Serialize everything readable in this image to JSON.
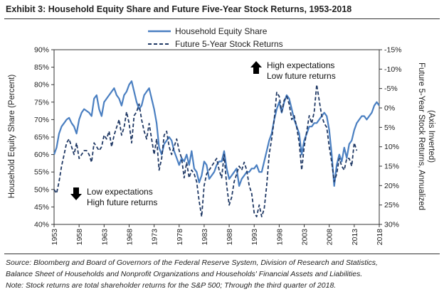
{
  "title": "Exhibit 3: Household Equity Share and Future Five-Year Stock Returns, 1953-2018",
  "source_lines": [
    "Source: Bloomberg and Board of Governors of the Federal Reserve System, Division of Research and Statistics,",
    "Balance Sheet of Households and Nonprofit Organizations and Households' Financial Assets and Liabilities.",
    "Note: Stock returns are total shareholder returns for the S&P 500; Through the third quarter of 2018."
  ],
  "chart_data": {
    "type": "line",
    "xlabel": "",
    "ylabel_left": "Household Equity Share (Percent)",
    "ylabel_right": "Future 5-Year Stock Returns, Annualized",
    "ylabel_right_sub": "(Axis Inverted)",
    "xlim": [
      1953,
      2018
    ],
    "x_ticks": [
      "1953",
      "1958",
      "1963",
      "1968",
      "1973",
      "1978",
      "1983",
      "1988",
      "1993",
      "1998",
      "2003",
      "2008",
      "2013",
      "2018"
    ],
    "ylim_left": [
      40,
      90
    ],
    "y_ticks_left": [
      "90%",
      "85%",
      "80%",
      "75%",
      "70%",
      "65%",
      "60%",
      "55%",
      "50%",
      "45%",
      "40%"
    ],
    "ylim_right": [
      -15,
      30
    ],
    "y_ticks_right": [
      "-15%",
      "-10%",
      "-5%",
      "0%",
      "5%",
      "10%",
      "15%",
      "20%",
      "25%",
      "30%"
    ],
    "legend": [
      "Household Equity Share",
      "Future 5-Year Stock Returns"
    ],
    "colors": {
      "equity": "#4a7fc1",
      "returns": "#1f3864"
    },
    "annotations": [
      {
        "id": "high",
        "direction": "up",
        "lines": [
          "High expectations",
          "Low future returns"
        ]
      },
      {
        "id": "low",
        "direction": "down",
        "lines": [
          "Low expectations",
          "High future returns"
        ]
      }
    ],
    "series": [
      {
        "name": "Household Equity Share",
        "style": "solid",
        "axis": "left",
        "points": [
          [
            1953,
            60
          ],
          [
            1953.5,
            62
          ],
          [
            1954,
            66
          ],
          [
            1954.5,
            68
          ],
          [
            1955,
            69
          ],
          [
            1955.5,
            70
          ],
          [
            1956,
            70.5
          ],
          [
            1956.5,
            69
          ],
          [
            1957,
            68
          ],
          [
            1957.5,
            66
          ],
          [
            1958,
            70
          ],
          [
            1958.5,
            72
          ],
          [
            1959,
            73
          ],
          [
            1959.5,
            72.5
          ],
          [
            1960,
            72
          ],
          [
            1960.5,
            71
          ],
          [
            1961,
            76
          ],
          [
            1961.5,
            77
          ],
          [
            1962,
            73
          ],
          [
            1962.5,
            71
          ],
          [
            1963,
            75
          ],
          [
            1963.5,
            76
          ],
          [
            1964,
            77
          ],
          [
            1964.5,
            78
          ],
          [
            1965,
            79
          ],
          [
            1965.5,
            77
          ],
          [
            1966,
            76
          ],
          [
            1966.5,
            74
          ],
          [
            1967,
            77
          ],
          [
            1967.5,
            78
          ],
          [
            1968,
            80
          ],
          [
            1968.5,
            81
          ],
          [
            1969,
            78
          ],
          [
            1969.5,
            75
          ],
          [
            1970,
            73
          ],
          [
            1970.5,
            74
          ],
          [
            1971,
            77
          ],
          [
            1971.5,
            78
          ],
          [
            1972,
            79
          ],
          [
            1972.5,
            76
          ],
          [
            1973,
            73
          ],
          [
            1973.5,
            69
          ],
          [
            1974,
            62
          ],
          [
            1974.5,
            60
          ],
          [
            1975,
            63
          ],
          [
            1975.5,
            64
          ],
          [
            1976,
            65
          ],
          [
            1976.5,
            64
          ],
          [
            1977,
            61
          ],
          [
            1977.5,
            59
          ],
          [
            1978,
            57
          ],
          [
            1978.5,
            59
          ],
          [
            1979,
            58
          ],
          [
            1979.5,
            60
          ],
          [
            1980,
            57
          ],
          [
            1980.5,
            61
          ],
          [
            1981,
            56
          ],
          [
            1981.5,
            55
          ],
          [
            1982,
            52
          ],
          [
            1982.5,
            54
          ],
          [
            1983,
            58
          ],
          [
            1983.5,
            57
          ],
          [
            1984,
            53
          ],
          [
            1984.5,
            54
          ],
          [
            1985,
            55
          ],
          [
            1985.5,
            57
          ],
          [
            1986,
            58
          ],
          [
            1986.5,
            58
          ],
          [
            1987,
            61
          ],
          [
            1987.5,
            56
          ],
          [
            1988,
            53
          ],
          [
            1988.5,
            54
          ],
          [
            1989,
            55
          ],
          [
            1989.5,
            56
          ],
          [
            1990,
            51
          ],
          [
            1990.5,
            53
          ],
          [
            1991,
            54
          ],
          [
            1991.5,
            55
          ],
          [
            1992,
            55
          ],
          [
            1992.5,
            56
          ],
          [
            1993,
            56
          ],
          [
            1993.5,
            57
          ],
          [
            1994,
            55
          ],
          [
            1994.5,
            55
          ],
          [
            1995,
            58
          ],
          [
            1995.5,
            61
          ],
          [
            1996,
            64
          ],
          [
            1996.5,
            66
          ],
          [
            1997,
            70
          ],
          [
            1997.5,
            73
          ],
          [
            1998,
            75
          ],
          [
            1998.5,
            72
          ],
          [
            1999,
            75
          ],
          [
            1999.5,
            77
          ],
          [
            2000,
            76
          ],
          [
            2000.5,
            73
          ],
          [
            2001,
            70
          ],
          [
            2001.5,
            68
          ],
          [
            2002,
            66
          ],
          [
            2002.5,
            60
          ],
          [
            2003,
            64
          ],
          [
            2003.5,
            66
          ],
          [
            2004,
            68
          ],
          [
            2004.5,
            68
          ],
          [
            2005,
            69
          ],
          [
            2005.5,
            69
          ],
          [
            2006,
            70
          ],
          [
            2006.5,
            71
          ],
          [
            2007,
            72
          ],
          [
            2007.5,
            71
          ],
          [
            2008,
            67
          ],
          [
            2008.5,
            60
          ],
          [
            2009,
            51
          ],
          [
            2009.5,
            57
          ],
          [
            2010,
            60
          ],
          [
            2010.5,
            58
          ],
          [
            2011,
            62
          ],
          [
            2011.5,
            59
          ],
          [
            2012,
            63
          ],
          [
            2012.5,
            64
          ],
          [
            2013,
            67
          ],
          [
            2013.5,
            69
          ],
          [
            2014,
            70
          ],
          [
            2014.5,
            71
          ],
          [
            2015,
            71
          ],
          [
            2015.5,
            70
          ],
          [
            2016,
            71
          ],
          [
            2016.5,
            72
          ],
          [
            2017,
            74
          ],
          [
            2017.5,
            75
          ],
          [
            2018,
            74
          ]
        ]
      },
      {
        "name": "Future 5-Year Stock Returns",
        "style": "dashed",
        "axis": "right",
        "points": [
          [
            1953,
            21
          ],
          [
            1953.5,
            22
          ],
          [
            1954,
            19
          ],
          [
            1954.5,
            15
          ],
          [
            1955,
            12
          ],
          [
            1955.5,
            9
          ],
          [
            1956,
            8
          ],
          [
            1956.5,
            10
          ],
          [
            1957,
            12
          ],
          [
            1957.5,
            9
          ],
          [
            1958,
            13
          ],
          [
            1958.5,
            12
          ],
          [
            1959,
            11
          ],
          [
            1959.5,
            11
          ],
          [
            1960,
            12
          ],
          [
            1960.5,
            14
          ],
          [
            1961,
            9
          ],
          [
            1961.5,
            10
          ],
          [
            1962,
            11
          ],
          [
            1962.5,
            10
          ],
          [
            1963,
            7
          ],
          [
            1963.5,
            8
          ],
          [
            1964,
            6
          ],
          [
            1964.5,
            10
          ],
          [
            1965,
            7
          ],
          [
            1965.5,
            5
          ],
          [
            1966,
            3
          ],
          [
            1966.5,
            7
          ],
          [
            1967,
            5
          ],
          [
            1967.5,
            1
          ],
          [
            1968,
            4
          ],
          [
            1968.5,
            9
          ],
          [
            1969,
            2
          ],
          [
            1969.5,
            1
          ],
          [
            1970,
            -1
          ],
          [
            1970.5,
            3
          ],
          [
            1971,
            6
          ],
          [
            1971.5,
            8
          ],
          [
            1972,
            4
          ],
          [
            1972.5,
            8
          ],
          [
            1973,
            12
          ],
          [
            1973.5,
            8
          ],
          [
            1974,
            16
          ],
          [
            1974.5,
            13
          ],
          [
            1975,
            7
          ],
          [
            1975.5,
            6
          ],
          [
            1976,
            10
          ],
          [
            1976.5,
            12
          ],
          [
            1977,
            10
          ],
          [
            1977.5,
            8
          ],
          [
            1978,
            11
          ],
          [
            1978.5,
            13
          ],
          [
            1979,
            18
          ],
          [
            1979.5,
            14
          ],
          [
            1980,
            18
          ],
          [
            1980.5,
            16
          ],
          [
            1981,
            17
          ],
          [
            1981.5,
            19
          ],
          [
            1982,
            24
          ],
          [
            1982.5,
            28
          ],
          [
            1983,
            20
          ],
          [
            1983.5,
            17
          ],
          [
            1984,
            16
          ],
          [
            1984.5,
            15
          ],
          [
            1985,
            14
          ],
          [
            1985.5,
            13
          ],
          [
            1986,
            16
          ],
          [
            1986.5,
            18
          ],
          [
            1987,
            12
          ],
          [
            1987.5,
            20
          ],
          [
            1988,
            25
          ],
          [
            1988.5,
            23
          ],
          [
            1989,
            19
          ],
          [
            1989.5,
            17
          ],
          [
            1990,
            15
          ],
          [
            1990.5,
            16
          ],
          [
            1991,
            14
          ],
          [
            1991.5,
            16
          ],
          [
            1992,
            20
          ],
          [
            1992.5,
            22
          ],
          [
            1993,
            27
          ],
          [
            1993.5,
            28
          ],
          [
            1994,
            25
          ],
          [
            1994.5,
            28
          ],
          [
            1995,
            26
          ],
          [
            1995.5,
            20
          ],
          [
            1996,
            12
          ],
          [
            1996.5,
            8
          ],
          [
            1997,
            3
          ],
          [
            1997.5,
            -4
          ],
          [
            1998,
            -3
          ],
          [
            1998.5,
            1
          ],
          [
            1999,
            -2
          ],
          [
            1999.5,
            -3
          ],
          [
            2000,
            -1
          ],
          [
            2000.5,
            3
          ],
          [
            2001,
            2
          ],
          [
            2001.5,
            5
          ],
          [
            2002,
            9
          ],
          [
            2002.5,
            16
          ],
          [
            2003,
            10
          ],
          [
            2003.5,
            6
          ],
          [
            2004,
            2
          ],
          [
            2004.5,
            4
          ],
          [
            2005,
            1
          ],
          [
            2005.5,
            -6
          ],
          [
            2006,
            -2
          ],
          [
            2006.5,
            2
          ],
          [
            2007,
            4
          ],
          [
            2007.5,
            5
          ],
          [
            2008,
            10
          ],
          [
            2008.5,
            14
          ],
          [
            2009,
            19
          ],
          [
            2009.5,
            17
          ],
          [
            2010,
            13
          ],
          [
            2010.5,
            15
          ],
          [
            2011,
            16
          ],
          [
            2011.5,
            13
          ],
          [
            2012,
            13
          ],
          [
            2012.5,
            15
          ],
          [
            2013,
            9
          ],
          [
            2013.5,
            11
          ]
        ]
      }
    ]
  }
}
